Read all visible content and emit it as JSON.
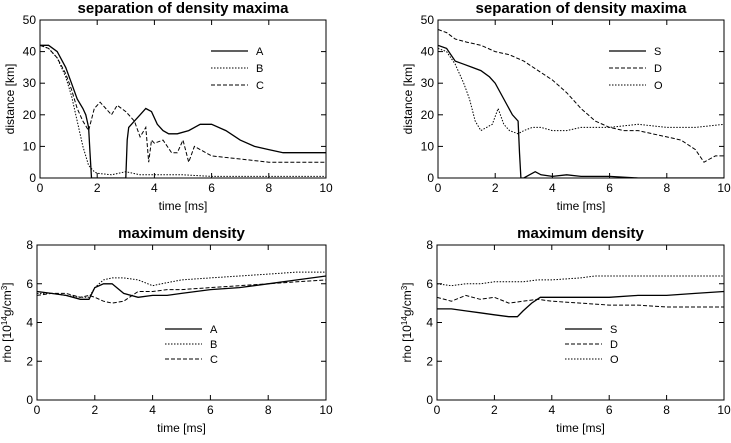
{
  "chart_data": [
    {
      "type": "line",
      "title": "separation of density maxima",
      "xlabel": "time [ms]",
      "ylabel": "distance [km]",
      "xlim": [
        0,
        10
      ],
      "ylim": [
        0,
        50
      ],
      "xticks": [
        0,
        2,
        4,
        6,
        8,
        10
      ],
      "yticks": [
        0,
        10,
        20,
        30,
        40,
        50
      ],
      "legend_position": "right",
      "series": [
        {
          "name": "A",
          "style": "solid",
          "x": [
            0,
            0.3,
            0.6,
            0.9,
            1.1,
            1.3,
            1.5,
            1.6,
            1.7,
            1.75,
            1.8,
            2.0,
            3.0,
            3.05,
            3.1,
            3.3,
            3.5,
            3.7,
            3.9,
            4.1,
            4.3,
            4.5,
            4.8,
            5.2,
            5.6,
            6.0,
            6.5,
            7.0,
            7.5,
            8.0,
            8.5,
            9.0,
            9.5,
            10.0
          ],
          "y": [
            42,
            42,
            40,
            35,
            30,
            25,
            22,
            20,
            16,
            8,
            0,
            0,
            0,
            12,
            16,
            18,
            20,
            22,
            21,
            17,
            15,
            14,
            14,
            15,
            17,
            17,
            15,
            12,
            10,
            9,
            8,
            8,
            8,
            8
          ]
        },
        {
          "name": "B",
          "style": "dotted",
          "x": [
            0,
            0.3,
            0.6,
            0.9,
            1.1,
            1.3,
            1.5,
            1.7,
            1.9,
            2.0,
            2.5,
            3.0,
            3.5,
            4.0,
            5.0,
            6.0,
            7.0,
            8.0,
            9.0,
            10.0
          ],
          "y": [
            42,
            41,
            38,
            32,
            26,
            18,
            10,
            4,
            2,
            1.5,
            1,
            2,
            1,
            1,
            1,
            0.5,
            0.5,
            0.5,
            0.5,
            0.5
          ]
        },
        {
          "name": "C",
          "style": "dashed",
          "x": [
            0,
            0.3,
            0.6,
            0.9,
            1.1,
            1.3,
            1.5,
            1.7,
            1.9,
            2.1,
            2.3,
            2.5,
            2.7,
            3.0,
            3.3,
            3.5,
            3.7,
            3.8,
            3.9,
            4.0,
            4.3,
            4.6,
            4.8,
            5.0,
            5.2,
            5.4,
            6.0,
            7.0,
            8.0,
            9.0,
            10.0
          ],
          "y": [
            42,
            41,
            38,
            33,
            28,
            22,
            18,
            15,
            22,
            24,
            22,
            20,
            23,
            21,
            18,
            13,
            16,
            5,
            12,
            11,
            12,
            8,
            8,
            12,
            5,
            10,
            7,
            6,
            5,
            5,
            5
          ]
        }
      ]
    },
    {
      "type": "line",
      "title": "separation of density maxima",
      "xlabel": "time [ms]",
      "ylabel": "distance [km]",
      "xlim": [
        0,
        10
      ],
      "ylim": [
        0,
        50
      ],
      "xticks": [
        0,
        2,
        4,
        6,
        8,
        10
      ],
      "yticks": [
        0,
        10,
        20,
        30,
        40,
        50
      ],
      "legend_position": "right",
      "series": [
        {
          "name": "S",
          "style": "solid",
          "x": [
            0,
            0.3,
            0.6,
            0.9,
            1.2,
            1.5,
            1.8,
            2.0,
            2.3,
            2.6,
            2.8,
            2.85,
            2.9,
            3.0,
            3.2,
            3.4,
            3.6,
            4.0,
            4.5,
            5.0,
            6.0,
            7.0,
            8.0,
            9.0,
            10.0
          ],
          "y": [
            42,
            41,
            37,
            36,
            35,
            34,
            32,
            30,
            25,
            20,
            18,
            8,
            0,
            0,
            1,
            2,
            1,
            0.5,
            1,
            0.5,
            0.5,
            0,
            0,
            0,
            0
          ]
        },
        {
          "name": "D",
          "style": "dashed",
          "x": [
            0,
            0.3,
            0.6,
            1.0,
            1.5,
            2.0,
            2.5,
            3.0,
            3.5,
            4.0,
            4.5,
            5.0,
            5.5,
            6.0,
            6.5,
            7.0,
            7.5,
            8.0,
            8.5,
            9.0,
            9.3,
            9.5,
            9.7,
            10.0
          ],
          "y": [
            47,
            46,
            44,
            43,
            42,
            40,
            39,
            37,
            34,
            31,
            27,
            22,
            18,
            16,
            15,
            15,
            14,
            13,
            12,
            9,
            5,
            6,
            7,
            7
          ]
        },
        {
          "name": "O",
          "style": "dotted",
          "x": [
            0,
            0.3,
            0.6,
            0.9,
            1.1,
            1.3,
            1.5,
            1.7,
            1.9,
            2.1,
            2.3,
            2.5,
            2.8,
            3.0,
            3.3,
            3.6,
            4.0,
            4.5,
            5.0,
            6.0,
            7.0,
            8.0,
            9.0,
            10.0
          ],
          "y": [
            41,
            40,
            36,
            30,
            25,
            18,
            15,
            16,
            17,
            22,
            17,
            15,
            14,
            15,
            16,
            16,
            15,
            15,
            16,
            16,
            17,
            16,
            16,
            17
          ]
        }
      ]
    },
    {
      "type": "line",
      "title": "maximum density",
      "xlabel": "time [ms]",
      "ylabel": "rho [10^14g/cm^3]",
      "xlim": [
        0,
        10
      ],
      "ylim": [
        0,
        8
      ],
      "xticks": [
        0,
        2,
        4,
        6,
        8,
        10
      ],
      "yticks": [
        0,
        2,
        4,
        6,
        8
      ],
      "legend_position": "lower right",
      "series": [
        {
          "name": "A",
          "style": "solid",
          "x": [
            0,
            0.5,
            1.0,
            1.5,
            1.8,
            2.0,
            2.3,
            2.6,
            3.0,
            3.5,
            4.0,
            4.5,
            5.0,
            6.0,
            7.0,
            8.0,
            9.0,
            10.0
          ],
          "y": [
            5.6,
            5.5,
            5.4,
            5.2,
            5.2,
            5.8,
            6.0,
            6.0,
            5.5,
            5.3,
            5.4,
            5.4,
            5.5,
            5.7,
            5.8,
            6.0,
            6.2,
            6.4
          ]
        },
        {
          "name": "B",
          "style": "dotted",
          "x": [
            0,
            0.5,
            1.0,
            1.5,
            1.8,
            2.0,
            2.3,
            2.6,
            3.0,
            3.5,
            4.0,
            4.3,
            5.0,
            6.0,
            7.0,
            8.0,
            9.0,
            10.0
          ],
          "y": [
            5.5,
            5.5,
            5.4,
            5.3,
            5.3,
            5.8,
            6.2,
            6.3,
            6.3,
            6.2,
            5.9,
            6.0,
            6.2,
            6.3,
            6.4,
            6.5,
            6.6,
            6.6
          ]
        },
        {
          "name": "C",
          "style": "dashed",
          "x": [
            0,
            0.5,
            1.0,
            1.5,
            1.8,
            2.0,
            2.3,
            2.6,
            3.0,
            3.5,
            4.0,
            4.5,
            5.0,
            6.0,
            7.0,
            8.0,
            9.0,
            10.0
          ],
          "y": [
            5.4,
            5.5,
            5.5,
            5.3,
            5.4,
            5.3,
            5.1,
            5.0,
            5.1,
            5.6,
            5.6,
            5.7,
            5.7,
            5.8,
            5.9,
            6.0,
            6.1,
            6.2
          ]
        }
      ]
    },
    {
      "type": "line",
      "title": "maximum density",
      "xlabel": "time [ms]",
      "ylabel": "rho [10^14g/cm^3]",
      "xlim": [
        0,
        10
      ],
      "ylim": [
        0,
        8
      ],
      "xticks": [
        0,
        2,
        4,
        6,
        8,
        10
      ],
      "yticks": [
        0,
        2,
        4,
        6,
        8
      ],
      "legend_position": "lower right",
      "series": [
        {
          "name": "S",
          "style": "solid",
          "x": [
            0,
            0.5,
            1.0,
            1.5,
            2.0,
            2.5,
            2.8,
            3.0,
            3.3,
            3.6,
            4.0,
            5.0,
            6.0,
            7.0,
            8.0,
            9.0,
            10.0
          ],
          "y": [
            4.7,
            4.7,
            4.6,
            4.5,
            4.4,
            4.3,
            4.3,
            4.6,
            5.0,
            5.3,
            5.3,
            5.3,
            5.3,
            5.4,
            5.4,
            5.5,
            5.6
          ]
        },
        {
          "name": "D",
          "style": "dashed",
          "x": [
            0,
            0.5,
            1.0,
            1.5,
            2.0,
            2.5,
            3.0,
            3.5,
            4.0,
            5.0,
            6.0,
            7.0,
            8.0,
            9.0,
            10.0
          ],
          "y": [
            5.3,
            5.1,
            5.4,
            5.2,
            5.3,
            5.0,
            5.1,
            5.2,
            5.1,
            5.0,
            4.9,
            4.9,
            4.8,
            4.8,
            4.8
          ]
        },
        {
          "name": "O",
          "style": "dotted",
          "x": [
            0,
            0.5,
            1.0,
            1.5,
            2.0,
            2.5,
            3.0,
            3.5,
            4.0,
            5.0,
            5.5,
            6.0,
            7.0,
            8.0,
            9.0,
            10.0
          ],
          "y": [
            6.0,
            5.9,
            6.0,
            6.0,
            6.1,
            6.1,
            6.1,
            6.2,
            6.2,
            6.3,
            6.4,
            6.4,
            6.4,
            6.4,
            6.4,
            6.4
          ]
        }
      ]
    }
  ]
}
